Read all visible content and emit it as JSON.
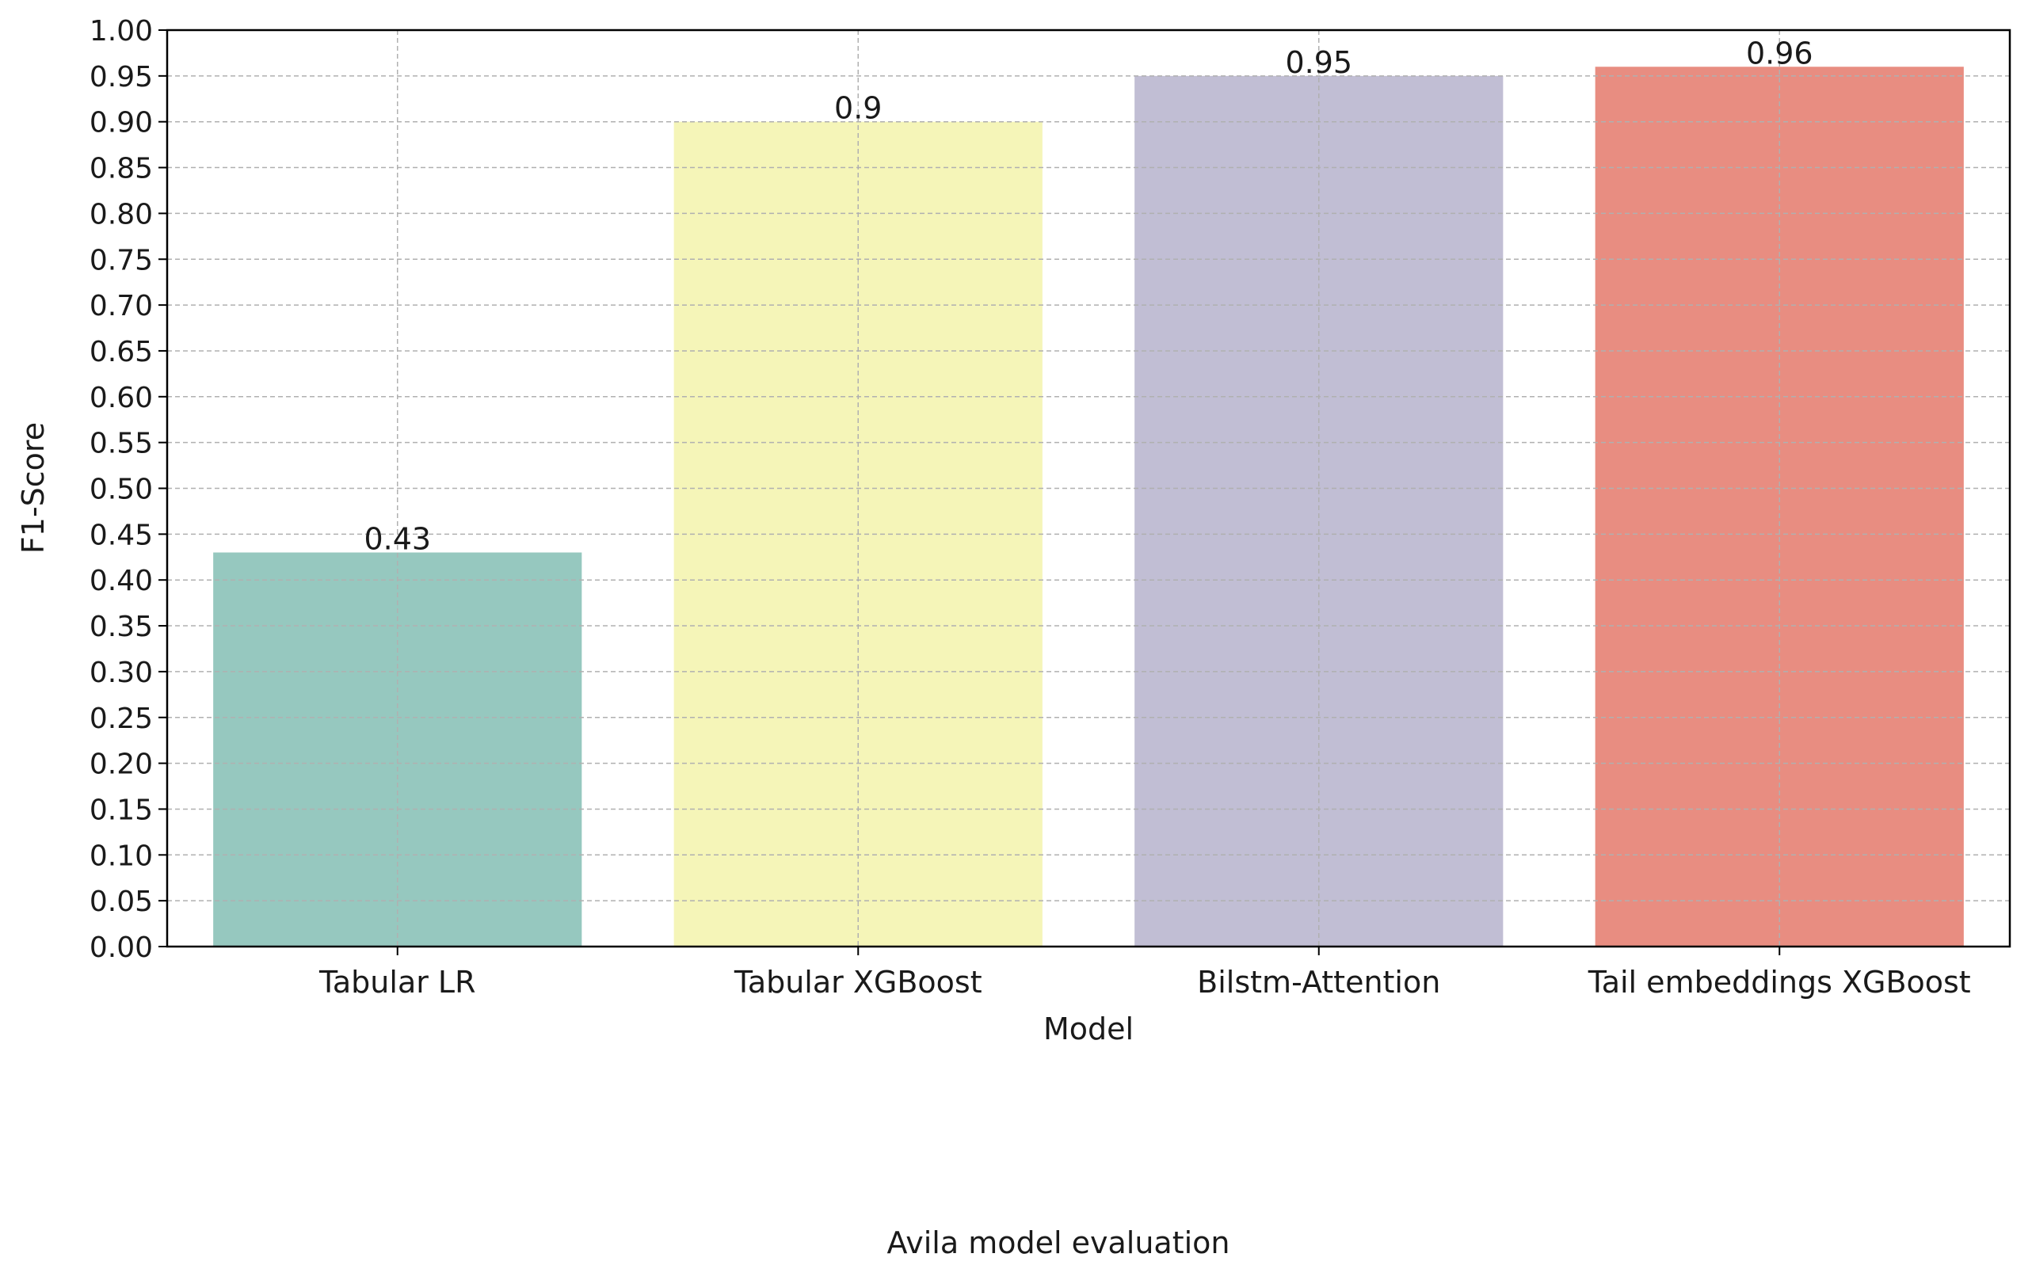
{
  "chart_data": {
    "type": "bar",
    "title": "Avila model evaluation",
    "xlabel": "Model",
    "ylabel": "F1-Score",
    "categories": [
      "Tabular LR",
      "Tabular XGBoost",
      "Bilstm-Attention",
      "Tail embeddings XGBoost"
    ],
    "values": [
      0.43,
      0.9,
      0.95,
      0.96
    ],
    "data_labels": [
      "0.43",
      "0.9",
      "0.95",
      "0.96"
    ],
    "bar_colors": [
      "#96c8bf",
      "#f5f5b8",
      "#c1bed4",
      "#e88d81"
    ],
    "ylim": [
      0,
      1.0
    ],
    "yticks": [
      0.0,
      0.05,
      0.1,
      0.15,
      0.2,
      0.25,
      0.3,
      0.35,
      0.4,
      0.45,
      0.5,
      0.55,
      0.6,
      0.65,
      0.7,
      0.75,
      0.8,
      0.85,
      0.9,
      0.95,
      1.0
    ],
    "ytick_labels": [
      "0.00",
      "0.05",
      "0.10",
      "0.15",
      "0.20",
      "0.25",
      "0.30",
      "0.35",
      "0.40",
      "0.45",
      "0.50",
      "0.55",
      "0.60",
      "0.65",
      "0.70",
      "0.75",
      "0.80",
      "0.85",
      "0.90",
      "0.95",
      "1.00"
    ],
    "grid": true,
    "grid_style": "dashed",
    "grid_color": "#b0b0b0",
    "legend": "none",
    "title_position": "bottom"
  }
}
